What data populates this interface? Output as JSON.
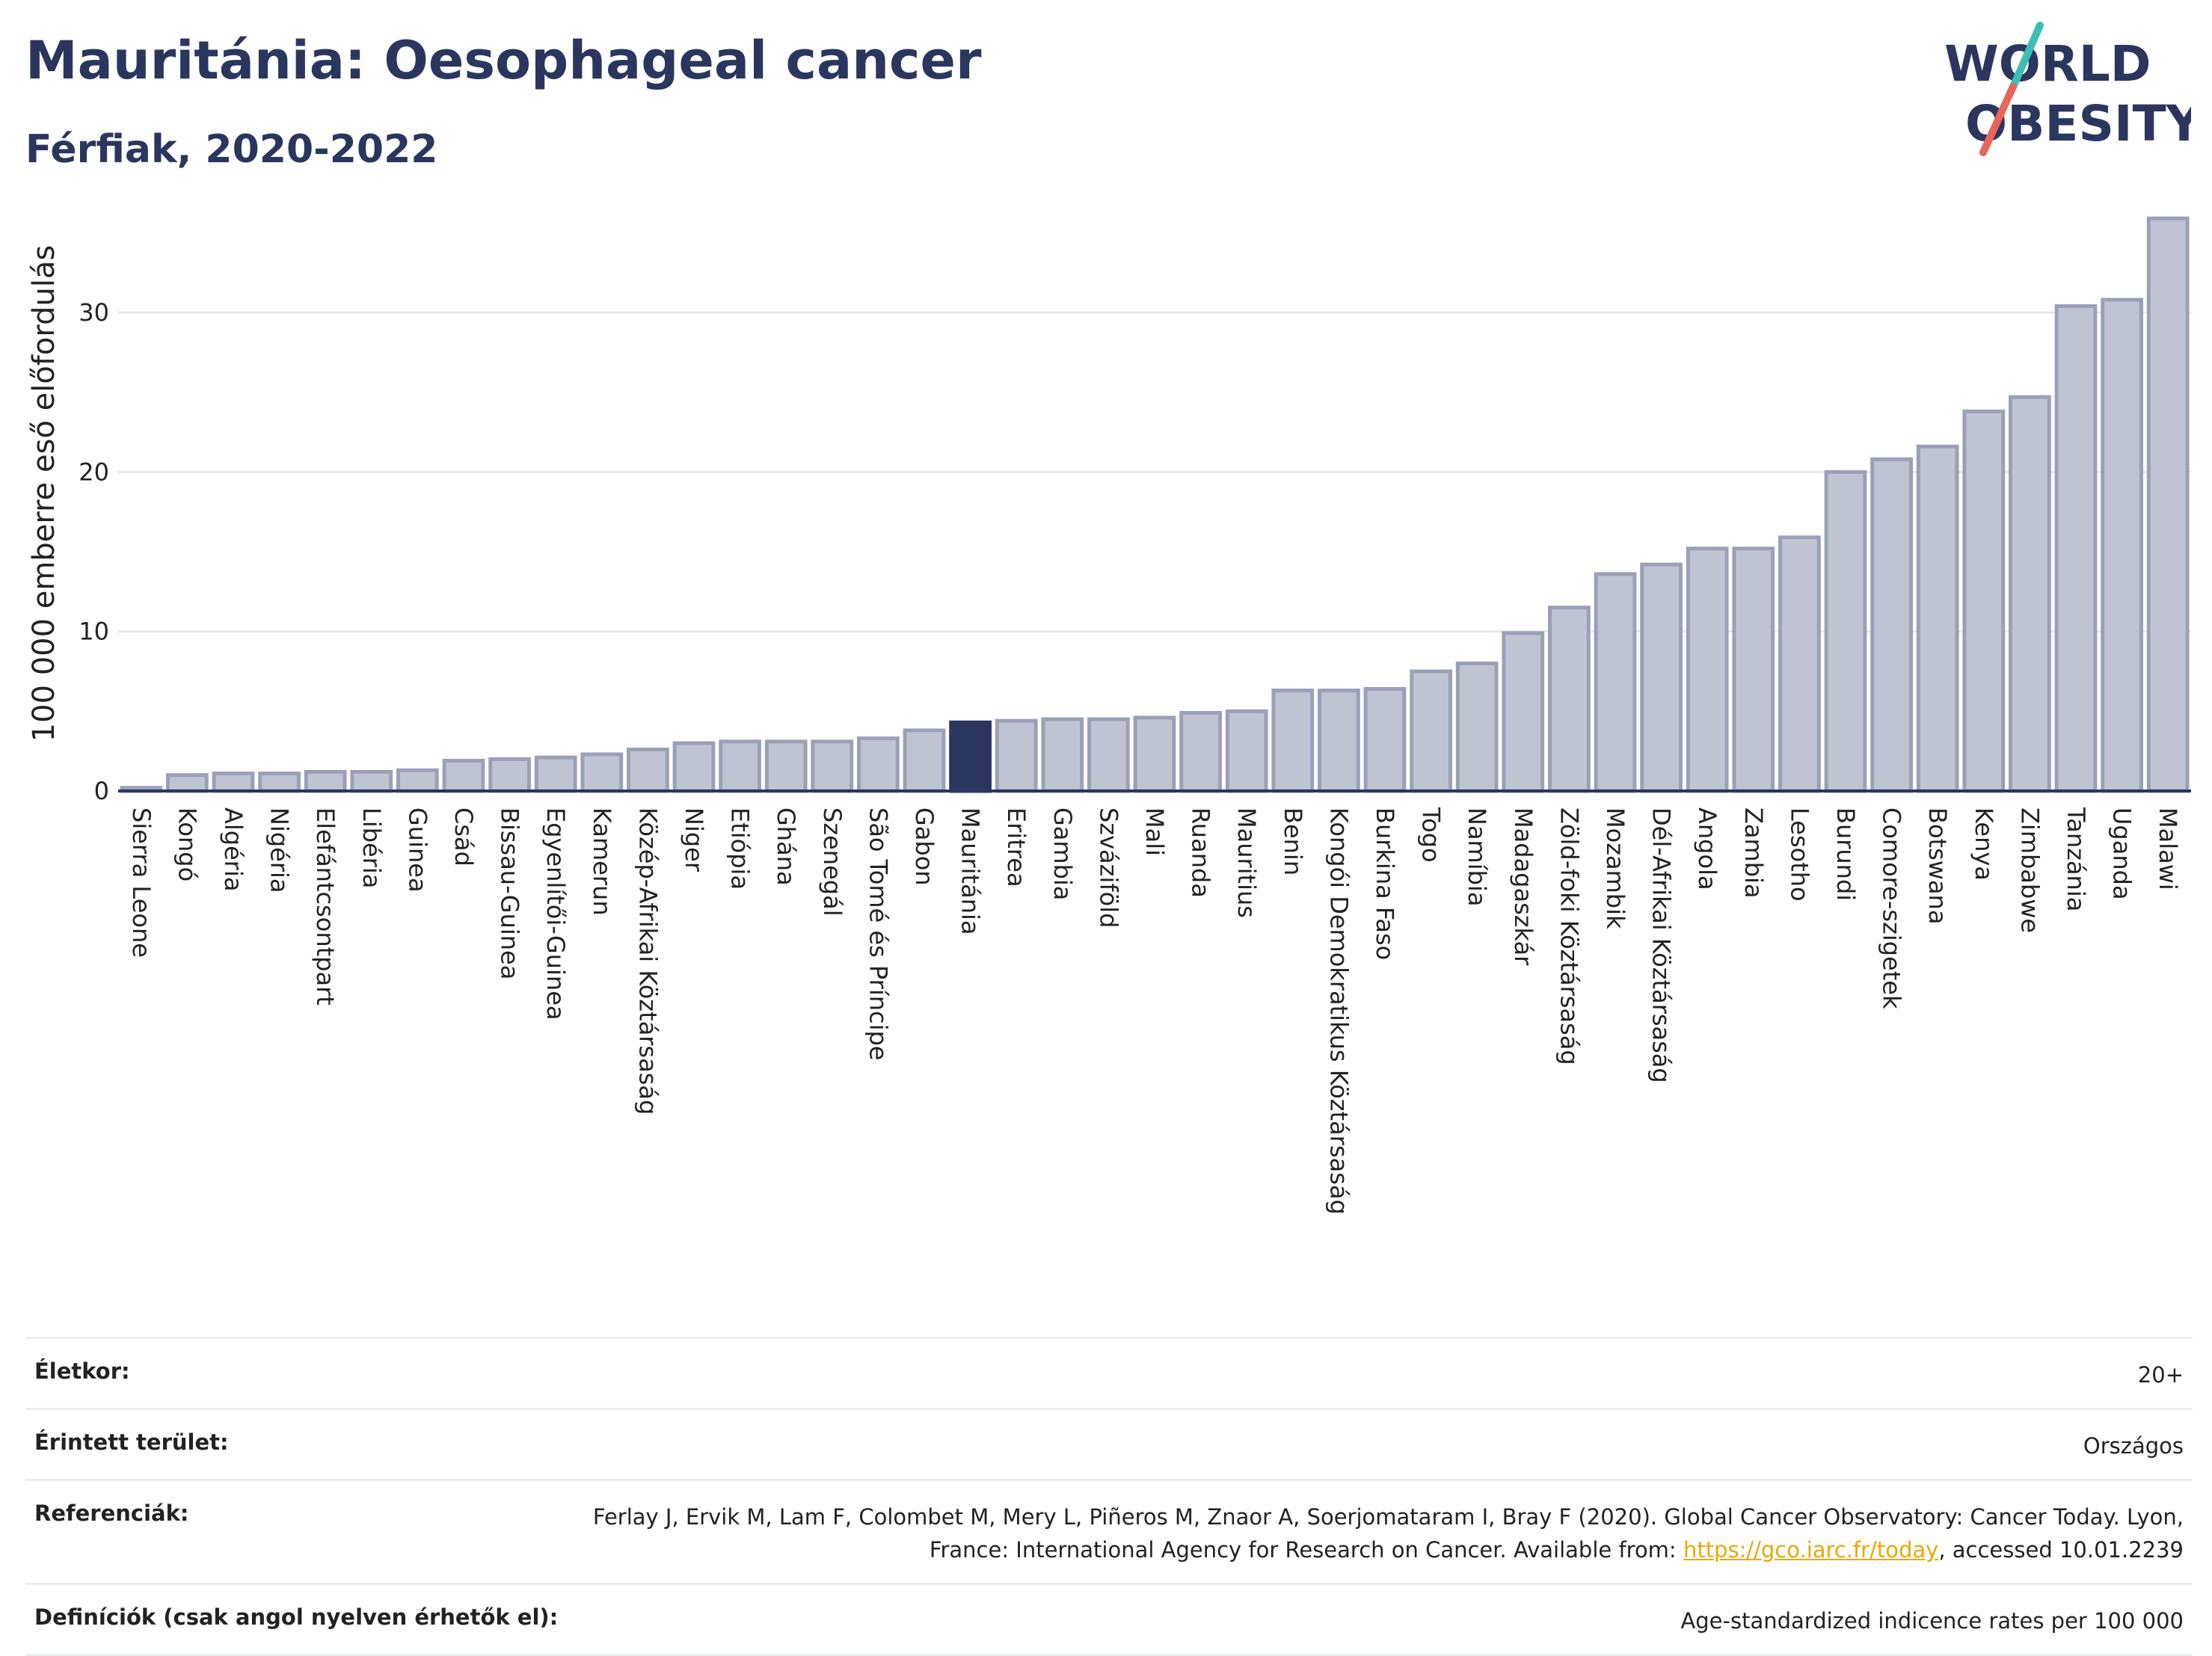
{
  "header": {
    "title": "Mauritánia: Oesophageal cancer",
    "subtitle": "Férfiak, 2020-2022"
  },
  "logo": {
    "line1": "WORLD",
    "line2": "OBESITY",
    "accent_teal": "#3bbfb3",
    "accent_red": "#e8655a",
    "text_color": "#2b365f"
  },
  "chart_data": {
    "type": "bar",
    "ylabel": "100 000 emberre eső előfordulás",
    "ylim": [
      0,
      36
    ],
    "yticks": [
      0,
      10,
      20,
      30
    ],
    "grid": true,
    "highlight": "Mauritánia",
    "colors": {
      "bar": "#c0c4d2",
      "bar_edge": "#9aa0b8",
      "highlight": "#2b365f",
      "grid": "#e6e8ee",
      "axis": "#2b365f"
    },
    "categories": [
      "Sierra Leone",
      "Kongó",
      "Algéria",
      "Nigéria",
      "Elefántcsontpart",
      "Libéria",
      "Guinea",
      "Csád",
      "Bissau-Guinea",
      "Egyenlítői-Guinea",
      "Kamerun",
      "Közép-Afrikai Köztársaság",
      "Niger",
      "Etiópia",
      "Ghána",
      "Szenegál",
      "São Tomé és Príncipe",
      "Gabon",
      "Mauritánia",
      "Eritrea",
      "Gambia",
      "Szváziföld",
      "Mali",
      "Ruanda",
      "Mauritius",
      "Benin",
      "Kongói Demokratikus Köztársaság",
      "Burkina Faso",
      "Togo",
      "Namíbia",
      "Madagaszkár",
      "Zöld-foki Köztársaság",
      "Mozambik",
      "Dél-Afrikai Köztársaság",
      "Angola",
      "Zambia",
      "Lesotho",
      "Burundi",
      "Comore-szigetek",
      "Botswana",
      "Kenya",
      "Zimbabwe",
      "Tanzánia",
      "Uganda",
      "Malawi"
    ],
    "values": [
      0.2,
      1.0,
      1.1,
      1.1,
      1.2,
      1.2,
      1.3,
      1.9,
      2.0,
      2.1,
      2.3,
      2.6,
      3.0,
      3.1,
      3.1,
      3.1,
      3.3,
      3.8,
      4.3,
      4.4,
      4.5,
      4.5,
      4.6,
      4.9,
      5.0,
      6.3,
      6.3,
      6.4,
      7.5,
      8.0,
      9.9,
      11.5,
      13.6,
      14.2,
      15.2,
      15.2,
      15.9,
      20.0,
      20.8,
      21.6,
      23.8,
      24.7,
      30.4,
      30.8,
      35.9
    ]
  },
  "footer": [
    {
      "key": "Életkor:",
      "value": "20+"
    },
    {
      "key": "Érintett terület:",
      "value": "Országos"
    },
    {
      "key": "Referenciák:",
      "value_pre": "Ferlay J, Ervik M, Lam F, Colombet M, Mery L, Piñeros M, Znaor A, Soerjomataram I, Bray F (2020). Global Cancer Observatory: Cancer Today. Lyon, France: International Agency for Research on Cancer. Available from: ",
      "link": "https://gco.iarc.fr/today",
      "value_post": ", accessed 10.01.2239"
    },
    {
      "key": "Definíciók (csak angol nyelven érhetők el):",
      "value": "Age-standardized indicence rates per 100 000"
    }
  ]
}
